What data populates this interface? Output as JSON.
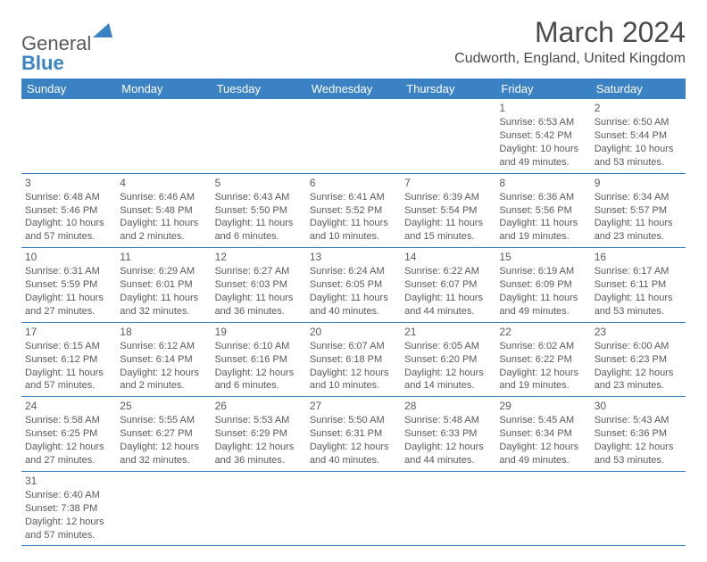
{
  "brand": {
    "name1": "General",
    "name2": "Blue"
  },
  "title": "March 2024",
  "location": "Cudworth, England, United Kingdom",
  "colors": {
    "header_bg": "#3b82c4",
    "header_text": "#ffffff",
    "border": "#3b82c4",
    "body_text": "#5a5a5a",
    "page_bg": "#ffffff"
  },
  "fonts": {
    "title_size": 32,
    "subtitle_size": 16,
    "dayhead_size": 13,
    "cell_size": 11
  },
  "day_headers": [
    "Sunday",
    "Monday",
    "Tuesday",
    "Wednesday",
    "Thursday",
    "Friday",
    "Saturday"
  ],
  "weeks": [
    [
      null,
      null,
      null,
      null,
      null,
      {
        "num": "1",
        "sunrise": "6:53 AM",
        "sunset": "5:42 PM",
        "day_h": 10,
        "day_m": 49
      },
      {
        "num": "2",
        "sunrise": "6:50 AM",
        "sunset": "5:44 PM",
        "day_h": 10,
        "day_m": 53
      }
    ],
    [
      {
        "num": "3",
        "sunrise": "6:48 AM",
        "sunset": "5:46 PM",
        "day_h": 10,
        "day_m": 57
      },
      {
        "num": "4",
        "sunrise": "6:46 AM",
        "sunset": "5:48 PM",
        "day_h": 11,
        "day_m": 2
      },
      {
        "num": "5",
        "sunrise": "6:43 AM",
        "sunset": "5:50 PM",
        "day_h": 11,
        "day_m": 6
      },
      {
        "num": "6",
        "sunrise": "6:41 AM",
        "sunset": "5:52 PM",
        "day_h": 11,
        "day_m": 10
      },
      {
        "num": "7",
        "sunrise": "6:39 AM",
        "sunset": "5:54 PM",
        "day_h": 11,
        "day_m": 15
      },
      {
        "num": "8",
        "sunrise": "6:36 AM",
        "sunset": "5:56 PM",
        "day_h": 11,
        "day_m": 19
      },
      {
        "num": "9",
        "sunrise": "6:34 AM",
        "sunset": "5:57 PM",
        "day_h": 11,
        "day_m": 23
      }
    ],
    [
      {
        "num": "10",
        "sunrise": "6:31 AM",
        "sunset": "5:59 PM",
        "day_h": 11,
        "day_m": 27
      },
      {
        "num": "11",
        "sunrise": "6:29 AM",
        "sunset": "6:01 PM",
        "day_h": 11,
        "day_m": 32
      },
      {
        "num": "12",
        "sunrise": "6:27 AM",
        "sunset": "6:03 PM",
        "day_h": 11,
        "day_m": 36
      },
      {
        "num": "13",
        "sunrise": "6:24 AM",
        "sunset": "6:05 PM",
        "day_h": 11,
        "day_m": 40
      },
      {
        "num": "14",
        "sunrise": "6:22 AM",
        "sunset": "6:07 PM",
        "day_h": 11,
        "day_m": 44
      },
      {
        "num": "15",
        "sunrise": "6:19 AM",
        "sunset": "6:09 PM",
        "day_h": 11,
        "day_m": 49
      },
      {
        "num": "16",
        "sunrise": "6:17 AM",
        "sunset": "6:11 PM",
        "day_h": 11,
        "day_m": 53
      }
    ],
    [
      {
        "num": "17",
        "sunrise": "6:15 AM",
        "sunset": "6:12 PM",
        "day_h": 11,
        "day_m": 57
      },
      {
        "num": "18",
        "sunrise": "6:12 AM",
        "sunset": "6:14 PM",
        "day_h": 12,
        "day_m": 2
      },
      {
        "num": "19",
        "sunrise": "6:10 AM",
        "sunset": "6:16 PM",
        "day_h": 12,
        "day_m": 6
      },
      {
        "num": "20",
        "sunrise": "6:07 AM",
        "sunset": "6:18 PM",
        "day_h": 12,
        "day_m": 10
      },
      {
        "num": "21",
        "sunrise": "6:05 AM",
        "sunset": "6:20 PM",
        "day_h": 12,
        "day_m": 14
      },
      {
        "num": "22",
        "sunrise": "6:02 AM",
        "sunset": "6:22 PM",
        "day_h": 12,
        "day_m": 19
      },
      {
        "num": "23",
        "sunrise": "6:00 AM",
        "sunset": "6:23 PM",
        "day_h": 12,
        "day_m": 23
      }
    ],
    [
      {
        "num": "24",
        "sunrise": "5:58 AM",
        "sunset": "6:25 PM",
        "day_h": 12,
        "day_m": 27
      },
      {
        "num": "25",
        "sunrise": "5:55 AM",
        "sunset": "6:27 PM",
        "day_h": 12,
        "day_m": 32
      },
      {
        "num": "26",
        "sunrise": "5:53 AM",
        "sunset": "6:29 PM",
        "day_h": 12,
        "day_m": 36
      },
      {
        "num": "27",
        "sunrise": "5:50 AM",
        "sunset": "6:31 PM",
        "day_h": 12,
        "day_m": 40
      },
      {
        "num": "28",
        "sunrise": "5:48 AM",
        "sunset": "6:33 PM",
        "day_h": 12,
        "day_m": 44
      },
      {
        "num": "29",
        "sunrise": "5:45 AM",
        "sunset": "6:34 PM",
        "day_h": 12,
        "day_m": 49
      },
      {
        "num": "30",
        "sunrise": "5:43 AM",
        "sunset": "6:36 PM",
        "day_h": 12,
        "day_m": 53
      }
    ],
    [
      {
        "num": "31",
        "sunrise": "6:40 AM",
        "sunset": "7:38 PM",
        "day_h": 12,
        "day_m": 57
      },
      null,
      null,
      null,
      null,
      null,
      null
    ]
  ]
}
